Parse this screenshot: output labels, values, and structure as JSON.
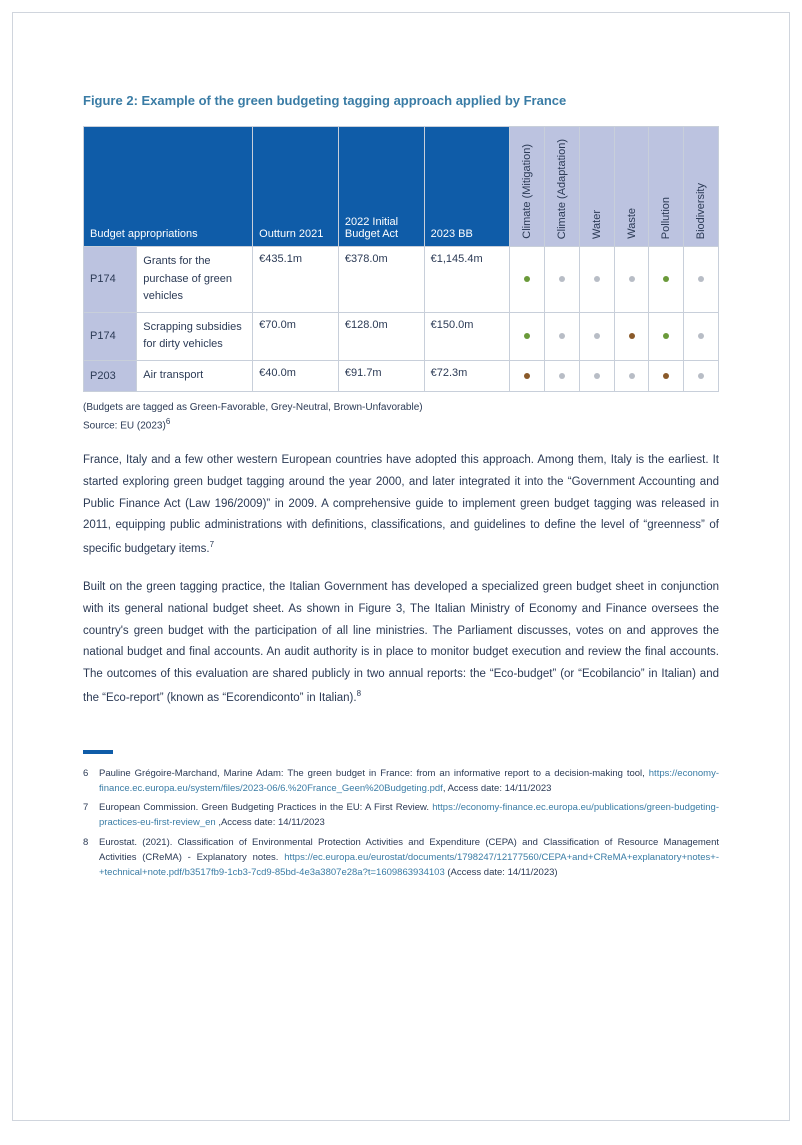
{
  "figure_title": "Figure 2: Example of the green budgeting tagging approach applied by France",
  "table": {
    "header_merged": "Budget appropriations",
    "headers": [
      "Outturn 2021",
      "2022 Initial Budget Act",
      "2023 BB"
    ],
    "categories": [
      "Climate (Mitigation)",
      "Climate (Adaptation)",
      "Water",
      "Waste",
      "Pollution",
      "Biodiversity"
    ],
    "category_bg": "#bcc3e0",
    "header_bg": "#0f5ca8",
    "dot_colors": {
      "green": "#6a9a3a",
      "grey": "#b8bdc6",
      "brown": "#8a5a2a"
    },
    "rows": [
      {
        "code": "P174",
        "desc": "Grants for the purchase of green vehicles",
        "amounts": [
          "€435.1m",
          "€378.0m",
          "€1,145.4m"
        ],
        "dots": [
          "green",
          "grey",
          "grey",
          "grey",
          "green",
          "grey"
        ]
      },
      {
        "code": "P174",
        "desc": "Scrapping subsidies for dirty vehicles",
        "amounts": [
          "€70.0m",
          "€128.0m",
          "€150.0m"
        ],
        "dots": [
          "green",
          "grey",
          "grey",
          "brown",
          "green",
          "grey"
        ]
      },
      {
        "code": "P203",
        "desc": "Air transport",
        "amounts": [
          "€40.0m",
          "€91.7m",
          "€72.3m"
        ],
        "dots": [
          "brown",
          "grey",
          "grey",
          "grey",
          "brown",
          "grey"
        ]
      }
    ]
  },
  "caption_line1": "(Budgets are tagged as Green-Favorable, Grey-Neutral, Brown-Unfavorable)",
  "caption_line2_prefix": "Source: EU (2023)",
  "caption_line2_sup": "6",
  "para1": "France, Italy and a few other western European countries have adopted this approach. Among them, Italy is the earliest. It started exploring green budget tagging around the year 2000, and later integrated it into the “Government Accounting and Public Finance Act (Law 196/2009)” in 2009. A comprehensive guide to implement green budget tagging was released in 2011, equipping public administrations with definitions, classifications, and guidelines to define the level of “greenness” of specific budgetary items.",
  "para1_sup": "7",
  "para2": "Built on the green tagging practice, the Italian Government has developed a specialized green budget sheet in conjunction with its general national budget sheet. As shown in Figure 3, The Italian Ministry of Economy and Finance oversees the country's green budget with the participation of all line ministries. The Parliament discusses, votes on and approves the national budget and final accounts. An audit authority is in place to monitor budget execution and review the final accounts. The outcomes of this evaluation are shared publicly in two annual reports: the “Eco-budget” (or “Ecobilancio” in Italian) and the “Eco-report” (known as “Ecorendiconto” in Italian).",
  "para2_sup": "8",
  "footnotes": [
    {
      "num": "6",
      "text_before": "Pauline Grégoire-Marchand, Marine Adam: The green budget in France: from an informative report to a decision-making tool, ",
      "link": "https://economy-finance.ec.europa.eu/system/files/2023-06/6.%20France_Geen%20Budgeting.pdf",
      "text_after": ", Access date: 14/11/2023"
    },
    {
      "num": "7",
      "text_before": "European Commission. Green Budgeting Practices in the EU: A First Review. ",
      "link": "https://economy-finance.ec.europa.eu/publications/green-budgeting-practices-eu-first-review_en",
      "text_after": " ,Access date: 14/11/2023"
    },
    {
      "num": "8",
      "text_before": "Eurostat. (2021). Classification of Environmental Protection Activities and Expenditure (CEPA) and Classification of Resource Management Activities (CReMA) - Explanatory notes. ",
      "link": "https://ec.europa.eu/eurostat/documents/1798247/12177560/CEPA+and+CReMA+explanatory+notes+-+technical+note.pdf/b3517fb9-1cb3-7cd9-85bd-4e3a3807e28a?t=1609863934103",
      "text_after": " (Access date: 14/11/2023)"
    }
  ]
}
